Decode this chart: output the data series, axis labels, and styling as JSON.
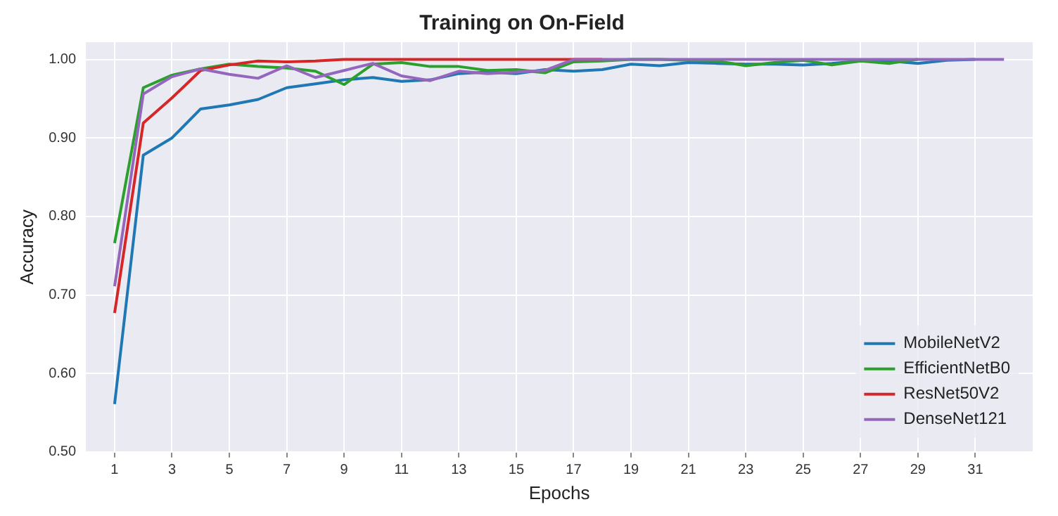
{
  "chart_data": {
    "type": "line",
    "title": "Training on On-Field",
    "xlabel": "Epochs",
    "ylabel": "Accuracy",
    "x": [
      1,
      2,
      3,
      4,
      5,
      6,
      7,
      8,
      9,
      10,
      11,
      12,
      13,
      14,
      15,
      16,
      17,
      18,
      19,
      20,
      21,
      22,
      23,
      24,
      25,
      26,
      27,
      28,
      29,
      30,
      31,
      32
    ],
    "series": [
      {
        "name": "MobileNetV2",
        "color": "#1f77b4",
        "values": [
          0.561,
          0.878,
          0.9,
          0.937,
          0.942,
          0.949,
          0.964,
          0.969,
          0.974,
          0.977,
          0.972,
          0.974,
          0.982,
          0.984,
          0.982,
          0.987,
          0.985,
          0.987,
          0.994,
          0.992,
          0.996,
          0.995,
          0.994,
          0.994,
          0.993,
          0.995,
          0.998,
          0.998,
          0.995,
          0.999,
          1.0,
          null
        ]
      },
      {
        "name": "EfficientNetB0",
        "color": "#2ca02c",
        "values": [
          0.766,
          0.964,
          0.98,
          0.988,
          0.994,
          0.991,
          0.989,
          0.985,
          0.968,
          0.994,
          0.996,
          0.991,
          0.991,
          0.986,
          0.987,
          0.983,
          0.997,
          0.998,
          1.0,
          1.0,
          0.999,
          0.998,
          0.992,
          0.996,
          0.999,
          0.993,
          0.998,
          0.995,
          1.0,
          null,
          null,
          null
        ]
      },
      {
        "name": "ResNet50V2",
        "color": "#d62728",
        "values": [
          0.677,
          0.919,
          0.951,
          0.986,
          0.993,
          0.998,
          0.997,
          0.998,
          1.0,
          1.0,
          1.0,
          1.0,
          1.0,
          1.0,
          1.0,
          1.0,
          1.0,
          1.0,
          null,
          null,
          null,
          null,
          null,
          null,
          null,
          null,
          null,
          null,
          null,
          null,
          null,
          null
        ]
      },
      {
        "name": "DenseNet121",
        "color": "#9467bd",
        "values": [
          0.711,
          0.956,
          0.978,
          0.988,
          0.981,
          0.976,
          0.992,
          0.977,
          0.986,
          0.995,
          0.979,
          0.973,
          0.985,
          0.982,
          0.984,
          0.986,
          1.0,
          1.0,
          1.0,
          1.0,
          1.0,
          1.0,
          1.0,
          1.0,
          1.0,
          1.0,
          1.0,
          1.0,
          1.0,
          1.0,
          1.0,
          1.0
        ]
      }
    ],
    "xlim": [
      0,
      33
    ],
    "xticks": [
      1,
      3,
      5,
      7,
      9,
      11,
      13,
      15,
      17,
      19,
      21,
      23,
      25,
      27,
      29,
      31
    ],
    "ylim": [
      0.5,
      1.022
    ],
    "yticks": [
      {
        "value": 0.5,
        "label": "0.50"
      },
      {
        "value": 0.6,
        "label": "0.60"
      },
      {
        "value": 0.7,
        "label": "0.70"
      },
      {
        "value": 0.8,
        "label": "0.80"
      },
      {
        "value": 0.9,
        "label": "0.90"
      },
      {
        "value": 1.0,
        "label": "1.00"
      }
    ],
    "grid": true,
    "legend": "bottom right",
    "marker": "none",
    "line_style": "solid"
  }
}
